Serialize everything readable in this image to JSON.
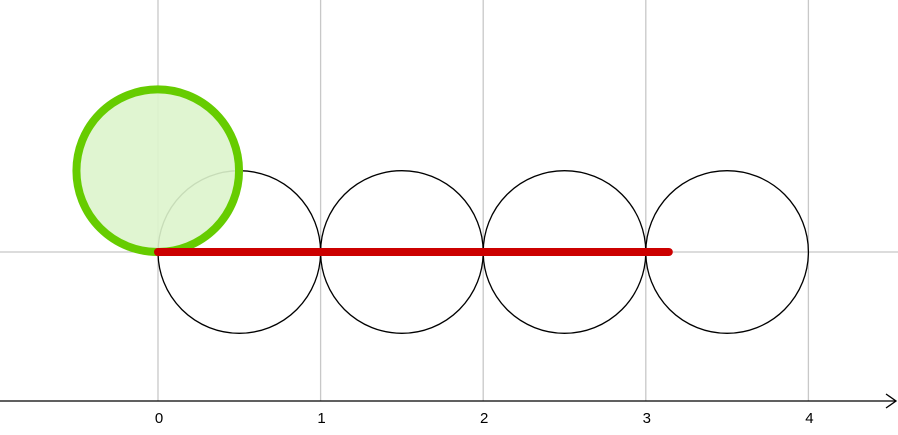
{
  "diagram": {
    "axis": {
      "ticks": [
        {
          "value": 0,
          "label": "0"
        },
        {
          "value": 1,
          "label": "1"
        },
        {
          "value": 2,
          "label": "2"
        },
        {
          "value": 3,
          "label": "3"
        },
        {
          "value": 4,
          "label": "4"
        }
      ],
      "range": [
        -0.97,
        4.55
      ]
    },
    "circles": [
      {
        "center_x": 0.5,
        "center_y": 0,
        "radius": 0.5
      },
      {
        "center_x": 1.5,
        "center_y": 0,
        "radius": 0.5
      },
      {
        "center_x": 2.5,
        "center_y": 0,
        "radius": 0.5
      },
      {
        "center_x": 3.5,
        "center_y": 0,
        "radius": 0.5
      }
    ],
    "rolling_circle": {
      "center_x": -0.0016,
      "center_y": 0.499997,
      "radius": 0.5
    },
    "unrolled_segment": {
      "start": 0,
      "end": 3.14159
    },
    "colors": {
      "grid": "#c8c8c8",
      "axis": "#000000",
      "circle_outline": "#000000",
      "rolling_circle_stroke": "#66cc00",
      "rolling_circle_fill": "#ddf4cc",
      "segment": "#cc0000"
    }
  }
}
